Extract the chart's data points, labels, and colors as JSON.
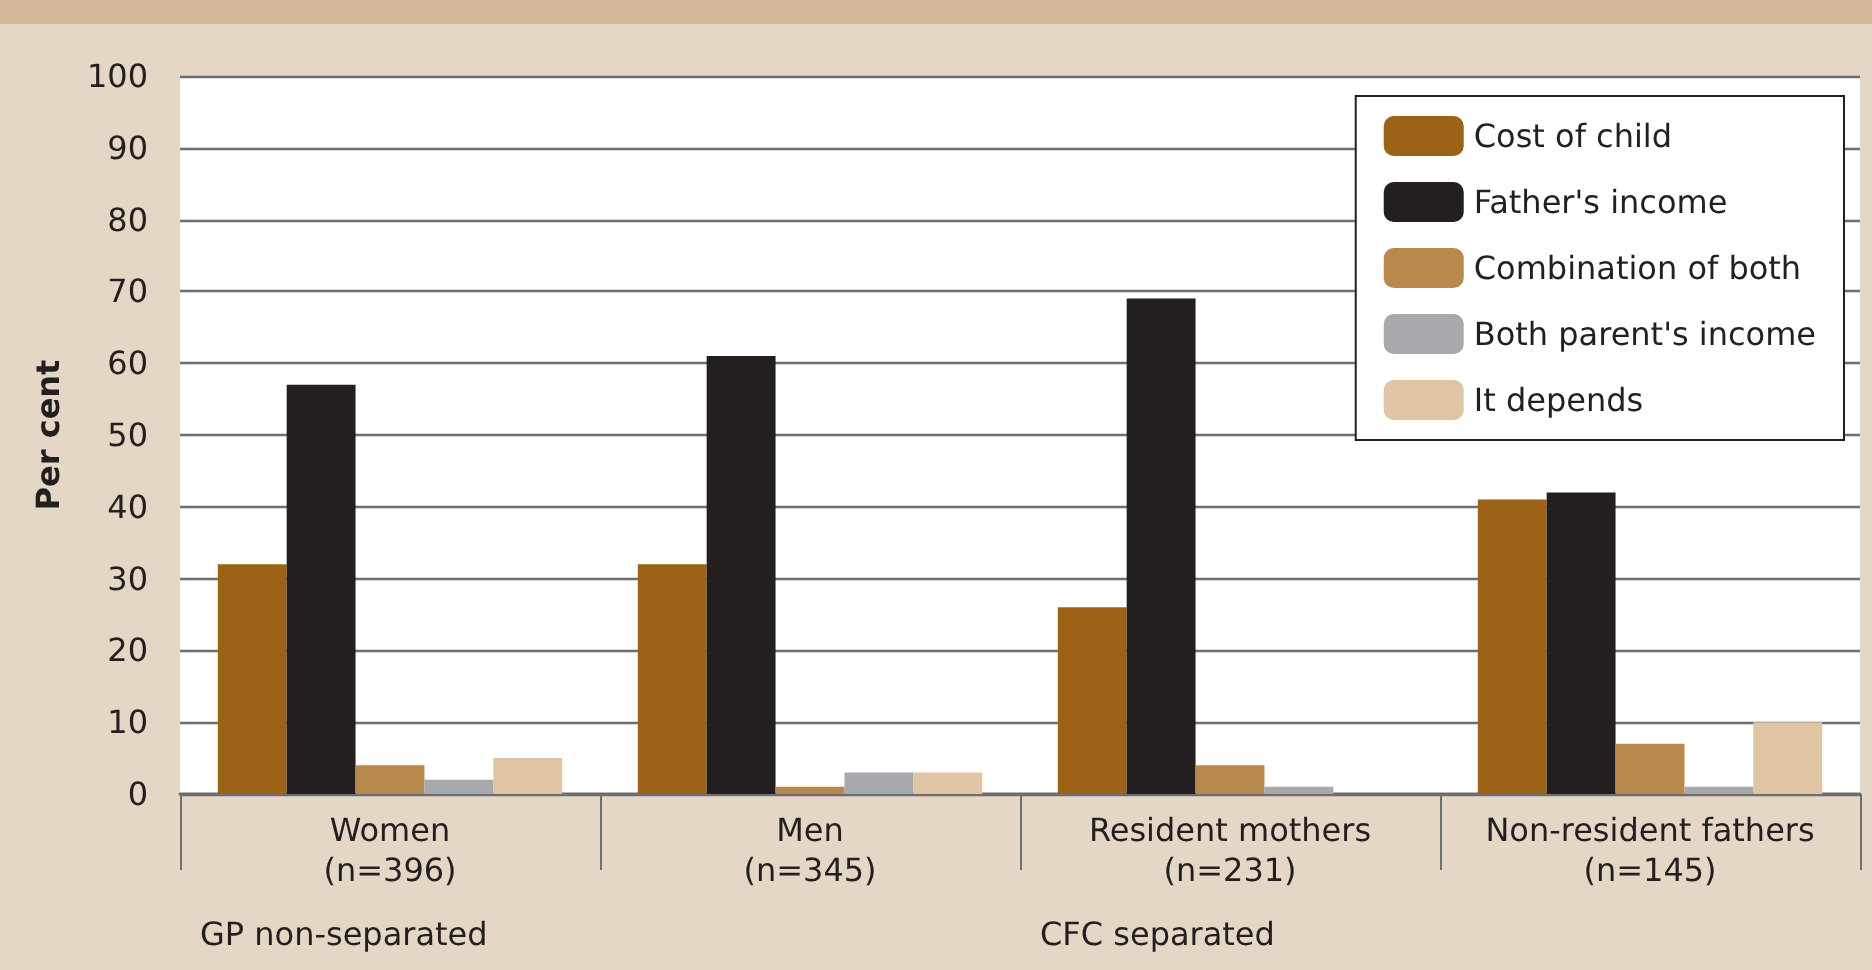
{
  "chart_data": {
    "type": "bar",
    "ylabel": "Per cent",
    "categories": [
      "Women\n(n=396)",
      "Men\n(n=345)",
      "Resident mothers\n(n=231)",
      "Non-resident fathers\n(n=145)"
    ],
    "series": [
      {
        "name": "Cost of child",
        "color": "#9c6317",
        "values": [
          32,
          32,
          26,
          41
        ]
      },
      {
        "name": "Father's income",
        "color": "#231f20",
        "values": [
          57,
          61,
          69,
          42
        ]
      },
      {
        "name": "Combination of both",
        "color": "#b8894c",
        "values": [
          4,
          1,
          4,
          7
        ]
      },
      {
        "name": "Both parent's income",
        "color": "#a7a9ac",
        "values": [
          2,
          3,
          1,
          1
        ]
      },
      {
        "name": "It depends",
        "color": "#dfc5a3",
        "values": [
          5,
          3,
          0,
          10
        ]
      }
    ],
    "ylim": [
      0,
      100
    ],
    "yticks": [
      0,
      10,
      20,
      30,
      40,
      50,
      60,
      70,
      80,
      90,
      100
    ],
    "grid": "y",
    "legend": "top right",
    "annotations": [
      "GP non-separated",
      "CFC separated"
    ]
  }
}
